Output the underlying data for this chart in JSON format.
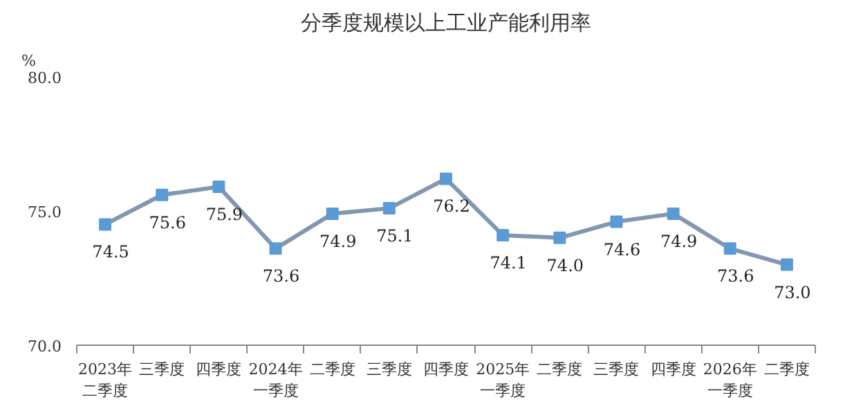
{
  "chart_data": {
    "type": "line",
    "title": "分季度规模以上工业产能利用率",
    "ylabel": "%",
    "categories": [
      "2023年二季度",
      "三季度",
      "四季度",
      "2024年一季度",
      "二季度",
      "三季度",
      "四季度",
      "2025年一季度",
      "二季度",
      "三季度",
      "四季度",
      "2026年一季度",
      "二季度"
    ],
    "series": [
      {
        "color": "#8497b0",
        "colors": [
          "#5b9bd5",
          "#5b9bd5",
          "#5b9bd5",
          "#5b9bd5",
          "#5b9bd5",
          "#5b9bd5",
          "#5b9bd5",
          "#5b9bd5",
          "#5b9bd5",
          "#5b9bd5",
          "#5b9bd5",
          "#5b9bd5",
          "#5b9bd5"
        ],
        "values": [
          74.5,
          75.6,
          75.9,
          73.6,
          74.9,
          75.1,
          76.2,
          74.1,
          74.0,
          74.6,
          74.9,
          73.6,
          73.0
        ],
        "value_labels": [
          "74.5",
          "75.6",
          "75.9",
          "73.6",
          "74.9",
          "75.1",
          "76.2",
          "74.1",
          "74.0",
          "74.6",
          "74.9",
          "73.6",
          "73.0"
        ]
      }
    ],
    "marker": "square",
    "ylim": [
      70,
      80
    ],
    "yticks": [
      {
        "value": 70,
        "label": "70.0"
      },
      {
        "value": 75,
        "label": "75.0"
      },
      {
        "value": 80,
        "label": "80.0"
      }
    ]
  }
}
